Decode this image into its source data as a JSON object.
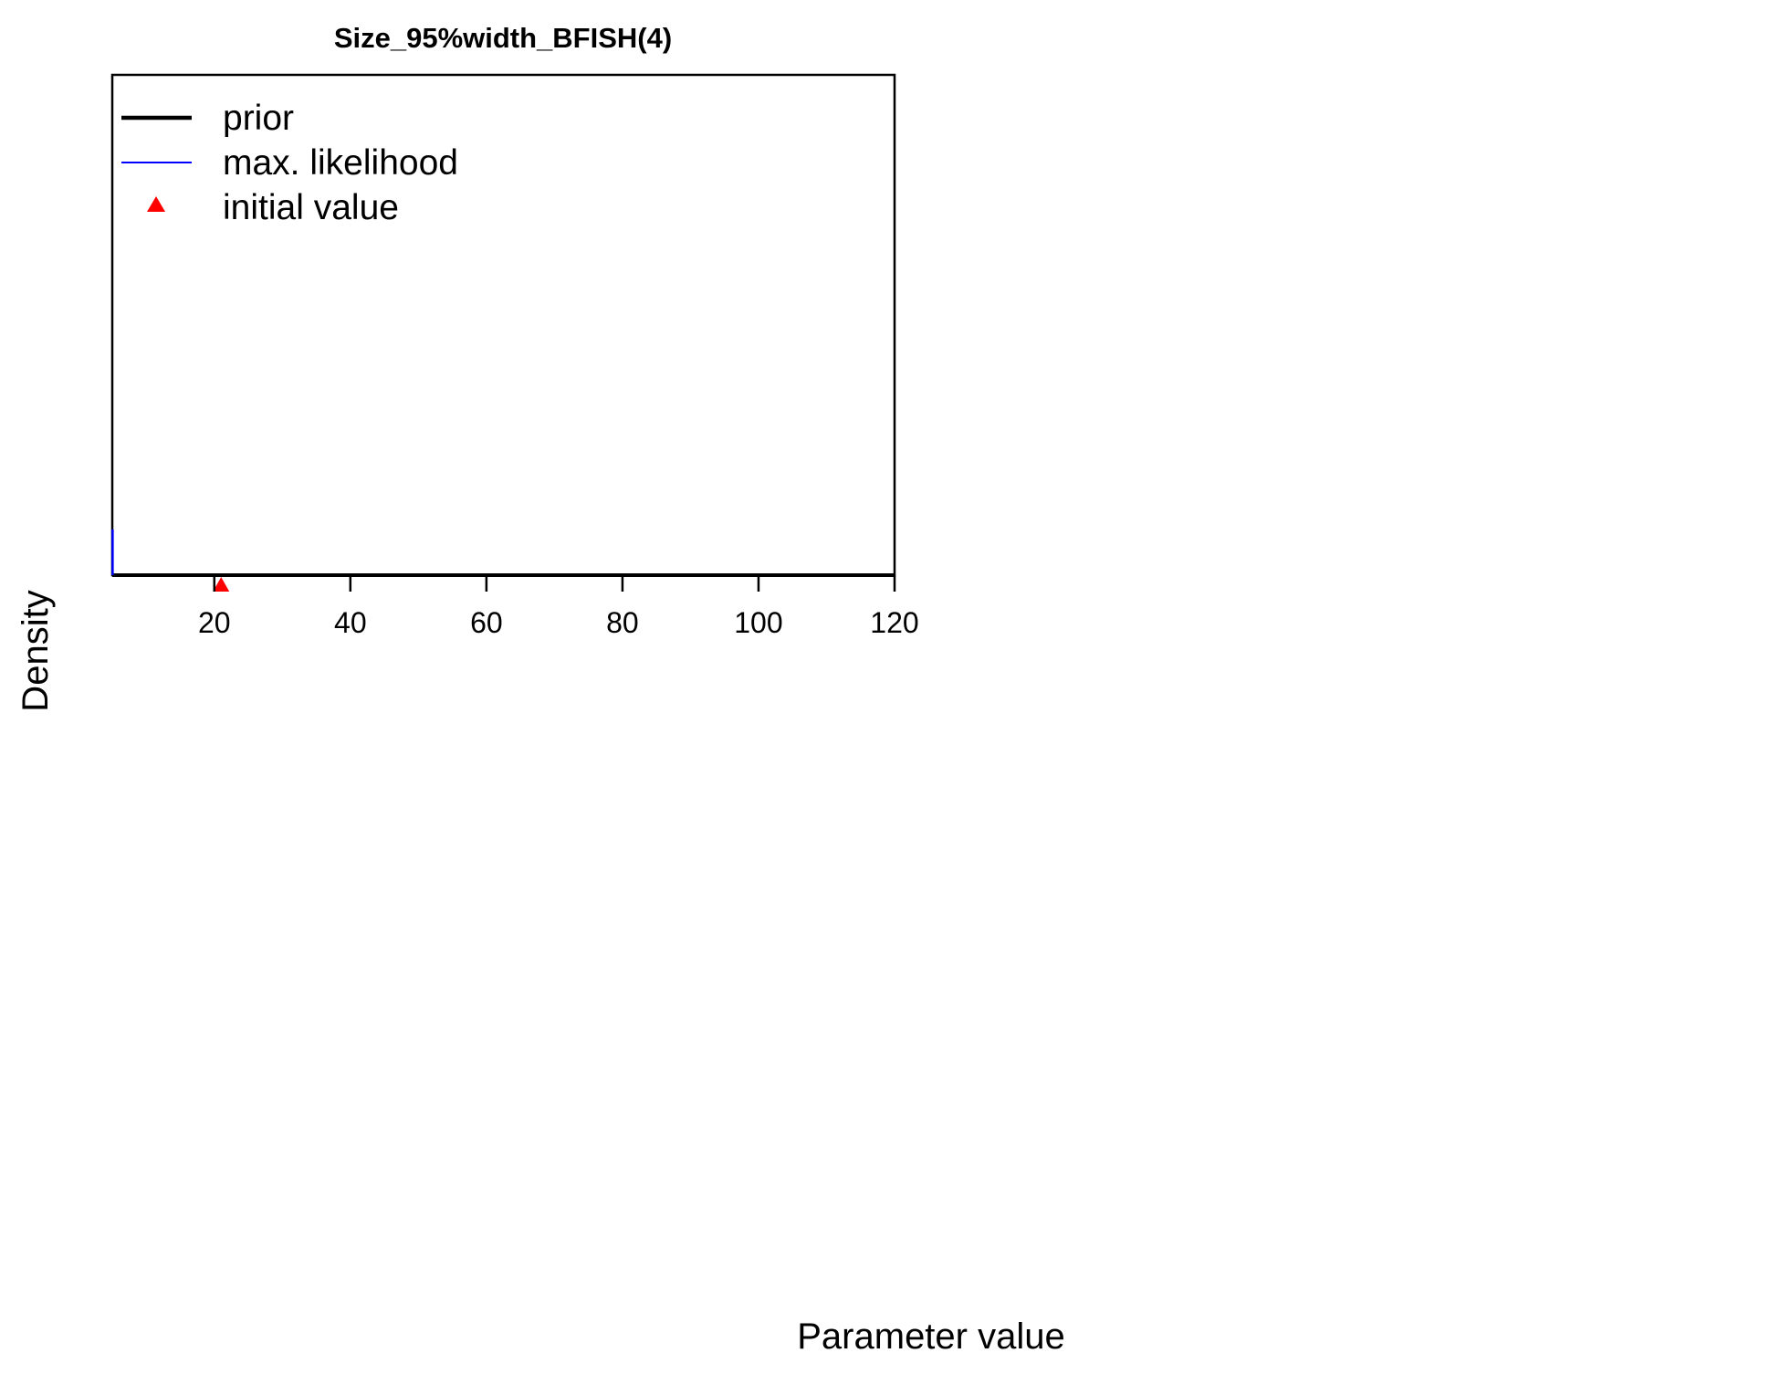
{
  "chart_data": {
    "type": "line",
    "title": "Size_95%width_BFISH(4)",
    "xlabel": "Parameter value",
    "ylabel": "Density",
    "xlim": [
      5,
      120
    ],
    "xticks": [
      20,
      40,
      60,
      80,
      100,
      120
    ],
    "grid": false,
    "legend": {
      "placement": "top-left",
      "entries": [
        {
          "label": "prior",
          "color": "#000000",
          "symbol": "thick-line"
        },
        {
          "label": "max. likelihood",
          "color": "#0000ff",
          "symbol": "thin-line"
        },
        {
          "label": "initial value",
          "color": "#ff0000",
          "symbol": "triangle"
        }
      ]
    },
    "series": [
      {
        "name": "prior",
        "color": "#000000",
        "x": [
          5,
          120
        ],
        "y": [
          0,
          0
        ]
      },
      {
        "name": "max. likelihood",
        "color": "#0000ff",
        "x": [
          5.05,
          5.05
        ],
        "y": [
          0,
          0.055
        ]
      }
    ],
    "points": [
      {
        "name": "initial value",
        "x": 21,
        "y": 0,
        "color": "#ff0000",
        "marker": "triangle"
      }
    ]
  }
}
